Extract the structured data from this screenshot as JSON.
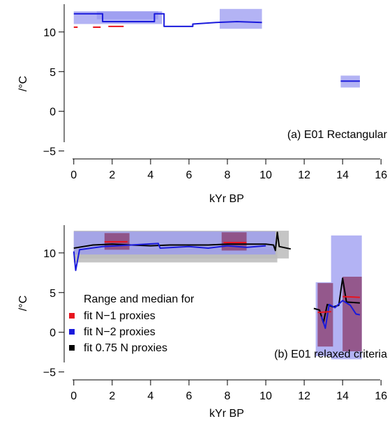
{
  "chart_data": [
    {
      "type": "line",
      "annotation": "(a) E01 Rectangular",
      "xlabel": "kYr BP",
      "ylabel": "/°C",
      "xlim": [
        -0.5,
        16.5
      ],
      "ylim": [
        -6,
        13.5
      ],
      "xticks": [
        0,
        2,
        4,
        6,
        8,
        10,
        12,
        14,
        16
      ],
      "yticks": [
        -5,
        0,
        5,
        10
      ],
      "ytick_labels": [
        "−5",
        "0",
        "5",
        "10"
      ],
      "grid": false,
      "legend": "none",
      "colors": {
        "n1": "#e8141e",
        "n2": "#1a1adc",
        "n2_band": "#9a9af0",
        "n1_band": "#c07080"
      },
      "series": [
        {
          "key": "n2",
          "bands": [
            {
              "x": [
                0.0,
                4.6
              ],
              "lo": 11.0,
              "hi": 12.6
            },
            {
              "x": [
                1.2,
                4.4
              ],
              "lo": 11.6,
              "hi": 12.6
            },
            {
              "x": [
                7.6,
                9.8
              ],
              "lo": 10.4,
              "hi": 12.9
            },
            {
              "x": [
                13.9,
                14.9
              ],
              "lo": 3.0,
              "hi": 4.5
            }
          ],
          "segments": [
            [
              [
                0.0,
                12.3
              ],
              [
                1.5,
                12.3
              ],
              [
                1.5,
                11.3
              ],
              [
                4.2,
                11.3
              ],
              [
                4.2,
                12.3
              ],
              [
                4.7,
                12.3
              ],
              [
                4.7,
                10.7
              ],
              [
                6.2,
                10.7
              ],
              [
                6.2,
                11.0
              ],
              [
                7.4,
                11.2
              ],
              [
                8.5,
                11.3
              ],
              [
                9.8,
                11.2
              ]
            ],
            [
              [
                13.9,
                3.8
              ],
              [
                14.9,
                3.8
              ]
            ]
          ]
        },
        {
          "key": "n1",
          "bands": [],
          "segments": [
            [
              [
                0.0,
                10.6
              ],
              [
                0.2,
                10.6
              ]
            ],
            [
              [
                1.0,
                10.6
              ],
              [
                1.4,
                10.6
              ]
            ],
            [
              [
                1.8,
                10.7
              ],
              [
                2.6,
                10.7
              ]
            ]
          ]
        }
      ]
    },
    {
      "type": "line",
      "annotation": "(b) E01 relaxed criteria",
      "xlabel": "kYr BP",
      "ylabel": "/°C",
      "xlim": [
        -0.5,
        16.5
      ],
      "ylim": [
        -6,
        13.5
      ],
      "xticks": [
        0,
        2,
        4,
        6,
        8,
        10,
        12,
        14,
        16
      ],
      "yticks": [
        -5,
        0,
        5,
        10
      ],
      "ytick_labels": [
        "−5",
        "0",
        "5",
        "10"
      ],
      "grid": false,
      "legend": "bottom-left",
      "legend_title": "Range and median for",
      "legend_entries": [
        "fit N−1 proxies",
        "fit N−2 proxies",
        "fit 0.75 N proxies"
      ],
      "colors": {
        "n1": "#e8141e",
        "n2": "#1a1adc",
        "n075": "#000000",
        "grey_band": "#bbbbbb",
        "n2_band": "#9a9af0",
        "n1_band": "#8a3a6a"
      },
      "series": [
        {
          "key": "n075",
          "bands": [
            {
              "x": [
                0.0,
                11.2
              ],
              "lo": 9.3,
              "hi": 12.8
            },
            {
              "x": [
                0.0,
                10.6
              ],
              "lo": 8.8,
              "hi": 10.5
            }
          ],
          "segments": [
            [
              [
                0.0,
                10.6
              ],
              [
                0.5,
                10.8
              ],
              [
                1.0,
                11.0
              ],
              [
                2.0,
                11.1
              ],
              [
                3.0,
                11.0
              ],
              [
                4.0,
                10.9
              ],
              [
                5.0,
                11.0
              ],
              [
                6.0,
                11.0
              ],
              [
                7.0,
                11.0
              ],
              [
                8.0,
                11.1
              ],
              [
                9.0,
                11.1
              ],
              [
                10.0,
                11.1
              ],
              [
                10.4,
                11.0
              ],
              [
                10.5,
                10.3
              ],
              [
                10.6,
                12.6
              ],
              [
                10.7,
                10.8
              ],
              [
                11.3,
                10.5
              ]
            ],
            [
              [
                12.5,
                3.0
              ],
              [
                12.8,
                2.8
              ],
              [
                13.0,
                1.2
              ],
              [
                13.2,
                3.5
              ],
              [
                13.5,
                3.2
              ],
              [
                13.8,
                3.4
              ],
              [
                14.0,
                6.8
              ],
              [
                14.2,
                3.8
              ],
              [
                14.9,
                3.7
              ]
            ]
          ]
        },
        {
          "key": "n2",
          "bands": [
            {
              "x": [
                0.0,
                10.5
              ],
              "lo": 9.8,
              "hi": 12.7
            },
            {
              "x": [
                12.6,
                13.4
              ],
              "lo": -3.0,
              "hi": 6.3
            },
            {
              "x": [
                13.4,
                15.0
              ],
              "lo": -3.4,
              "hi": 12.2
            }
          ],
          "segments": [
            [
              [
                0.0,
                10.2
              ],
              [
                0.1,
                7.8
              ],
              [
                0.3,
                10.4
              ],
              [
                1.5,
                10.8
              ],
              [
                3.0,
                11.0
              ],
              [
                4.4,
                11.2
              ],
              [
                4.5,
                10.6
              ],
              [
                6.0,
                10.8
              ],
              [
                7.0,
                10.6
              ],
              [
                8.0,
                10.9
              ],
              [
                9.0,
                10.7
              ],
              [
                10.0,
                10.9
              ]
            ],
            [
              [
                12.9,
                2.0
              ],
              [
                13.1,
                0.5
              ],
              [
                13.3,
                3.5
              ],
              [
                13.6,
                3.1
              ],
              [
                14.0,
                4.0
              ],
              [
                14.4,
                3.4
              ],
              [
                14.7,
                2.3
              ],
              [
                14.9,
                2.2
              ]
            ]
          ]
        },
        {
          "key": "n1",
          "bands": [
            {
              "x": [
                1.6,
                2.9
              ],
              "lo": 10.4,
              "hi": 12.5
            },
            {
              "x": [
                7.7,
                9.0
              ],
              "lo": 10.3,
              "hi": 12.6
            },
            {
              "x": [
                12.7,
                13.5
              ],
              "lo": -1.8,
              "hi": 6.2
            },
            {
              "x": [
                14.0,
                15.0
              ],
              "lo": -2.4,
              "hi": 7.0
            }
          ],
          "segments": [
            [
              [
                1.6,
                11.4
              ],
              [
                2.8,
                11.4
              ]
            ],
            [
              [
                7.8,
                11.3
              ],
              [
                9.0,
                11.3
              ]
            ],
            [
              [
                12.7,
                2.5
              ],
              [
                13.4,
                2.6
              ]
            ],
            [
              [
                14.0,
                4.5
              ],
              [
                14.9,
                4.4
              ]
            ]
          ]
        }
      ]
    }
  ]
}
